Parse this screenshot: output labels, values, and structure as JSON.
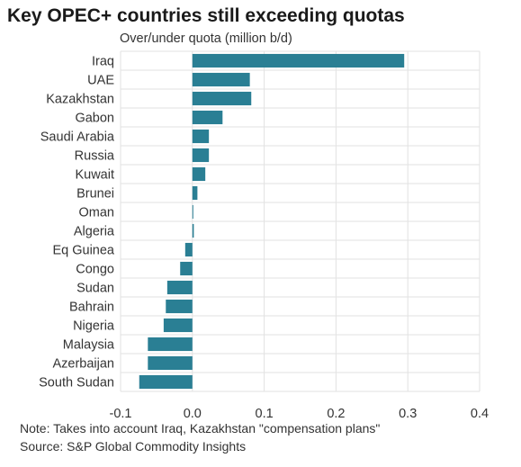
{
  "chart_data": {
    "type": "bar",
    "orientation": "horizontal",
    "title": "Key OPEC+ countries still exceeding quotas",
    "subtitle": "Over/under quota (million b/d)",
    "categories": [
      "Iraq",
      "UAE",
      "Kazakhstan",
      "Gabon",
      "Saudi Arabia",
      "Russia",
      "Kuwait",
      "Brunei",
      "Oman",
      "Algeria",
      "Eq Guinea",
      "Congo",
      "Sudan",
      "Bahrain",
      "Nigeria",
      "Malaysia",
      "Azerbaijan",
      "South Sudan"
    ],
    "values": [
      0.295,
      0.08,
      0.082,
      0.042,
      0.023,
      0.023,
      0.018,
      0.007,
      0.001,
      0.002,
      -0.01,
      -0.017,
      -0.035,
      -0.037,
      -0.04,
      -0.062,
      -0.062,
      -0.074
    ],
    "xlim": [
      -0.1,
      0.4
    ],
    "xticks": [
      "-0.1",
      "0.0",
      "0.1",
      "0.2",
      "0.3",
      "0.4"
    ],
    "xtick_values": [
      -0.1,
      0.0,
      0.1,
      0.2,
      0.3,
      0.4
    ],
    "grid": true,
    "bar_color": "#2a7f94",
    "notes": [
      "Note: Takes into account Iraq, Kazakhstan \"compensation plans\"",
      "Source: S&P Global Commodity Insights"
    ]
  }
}
